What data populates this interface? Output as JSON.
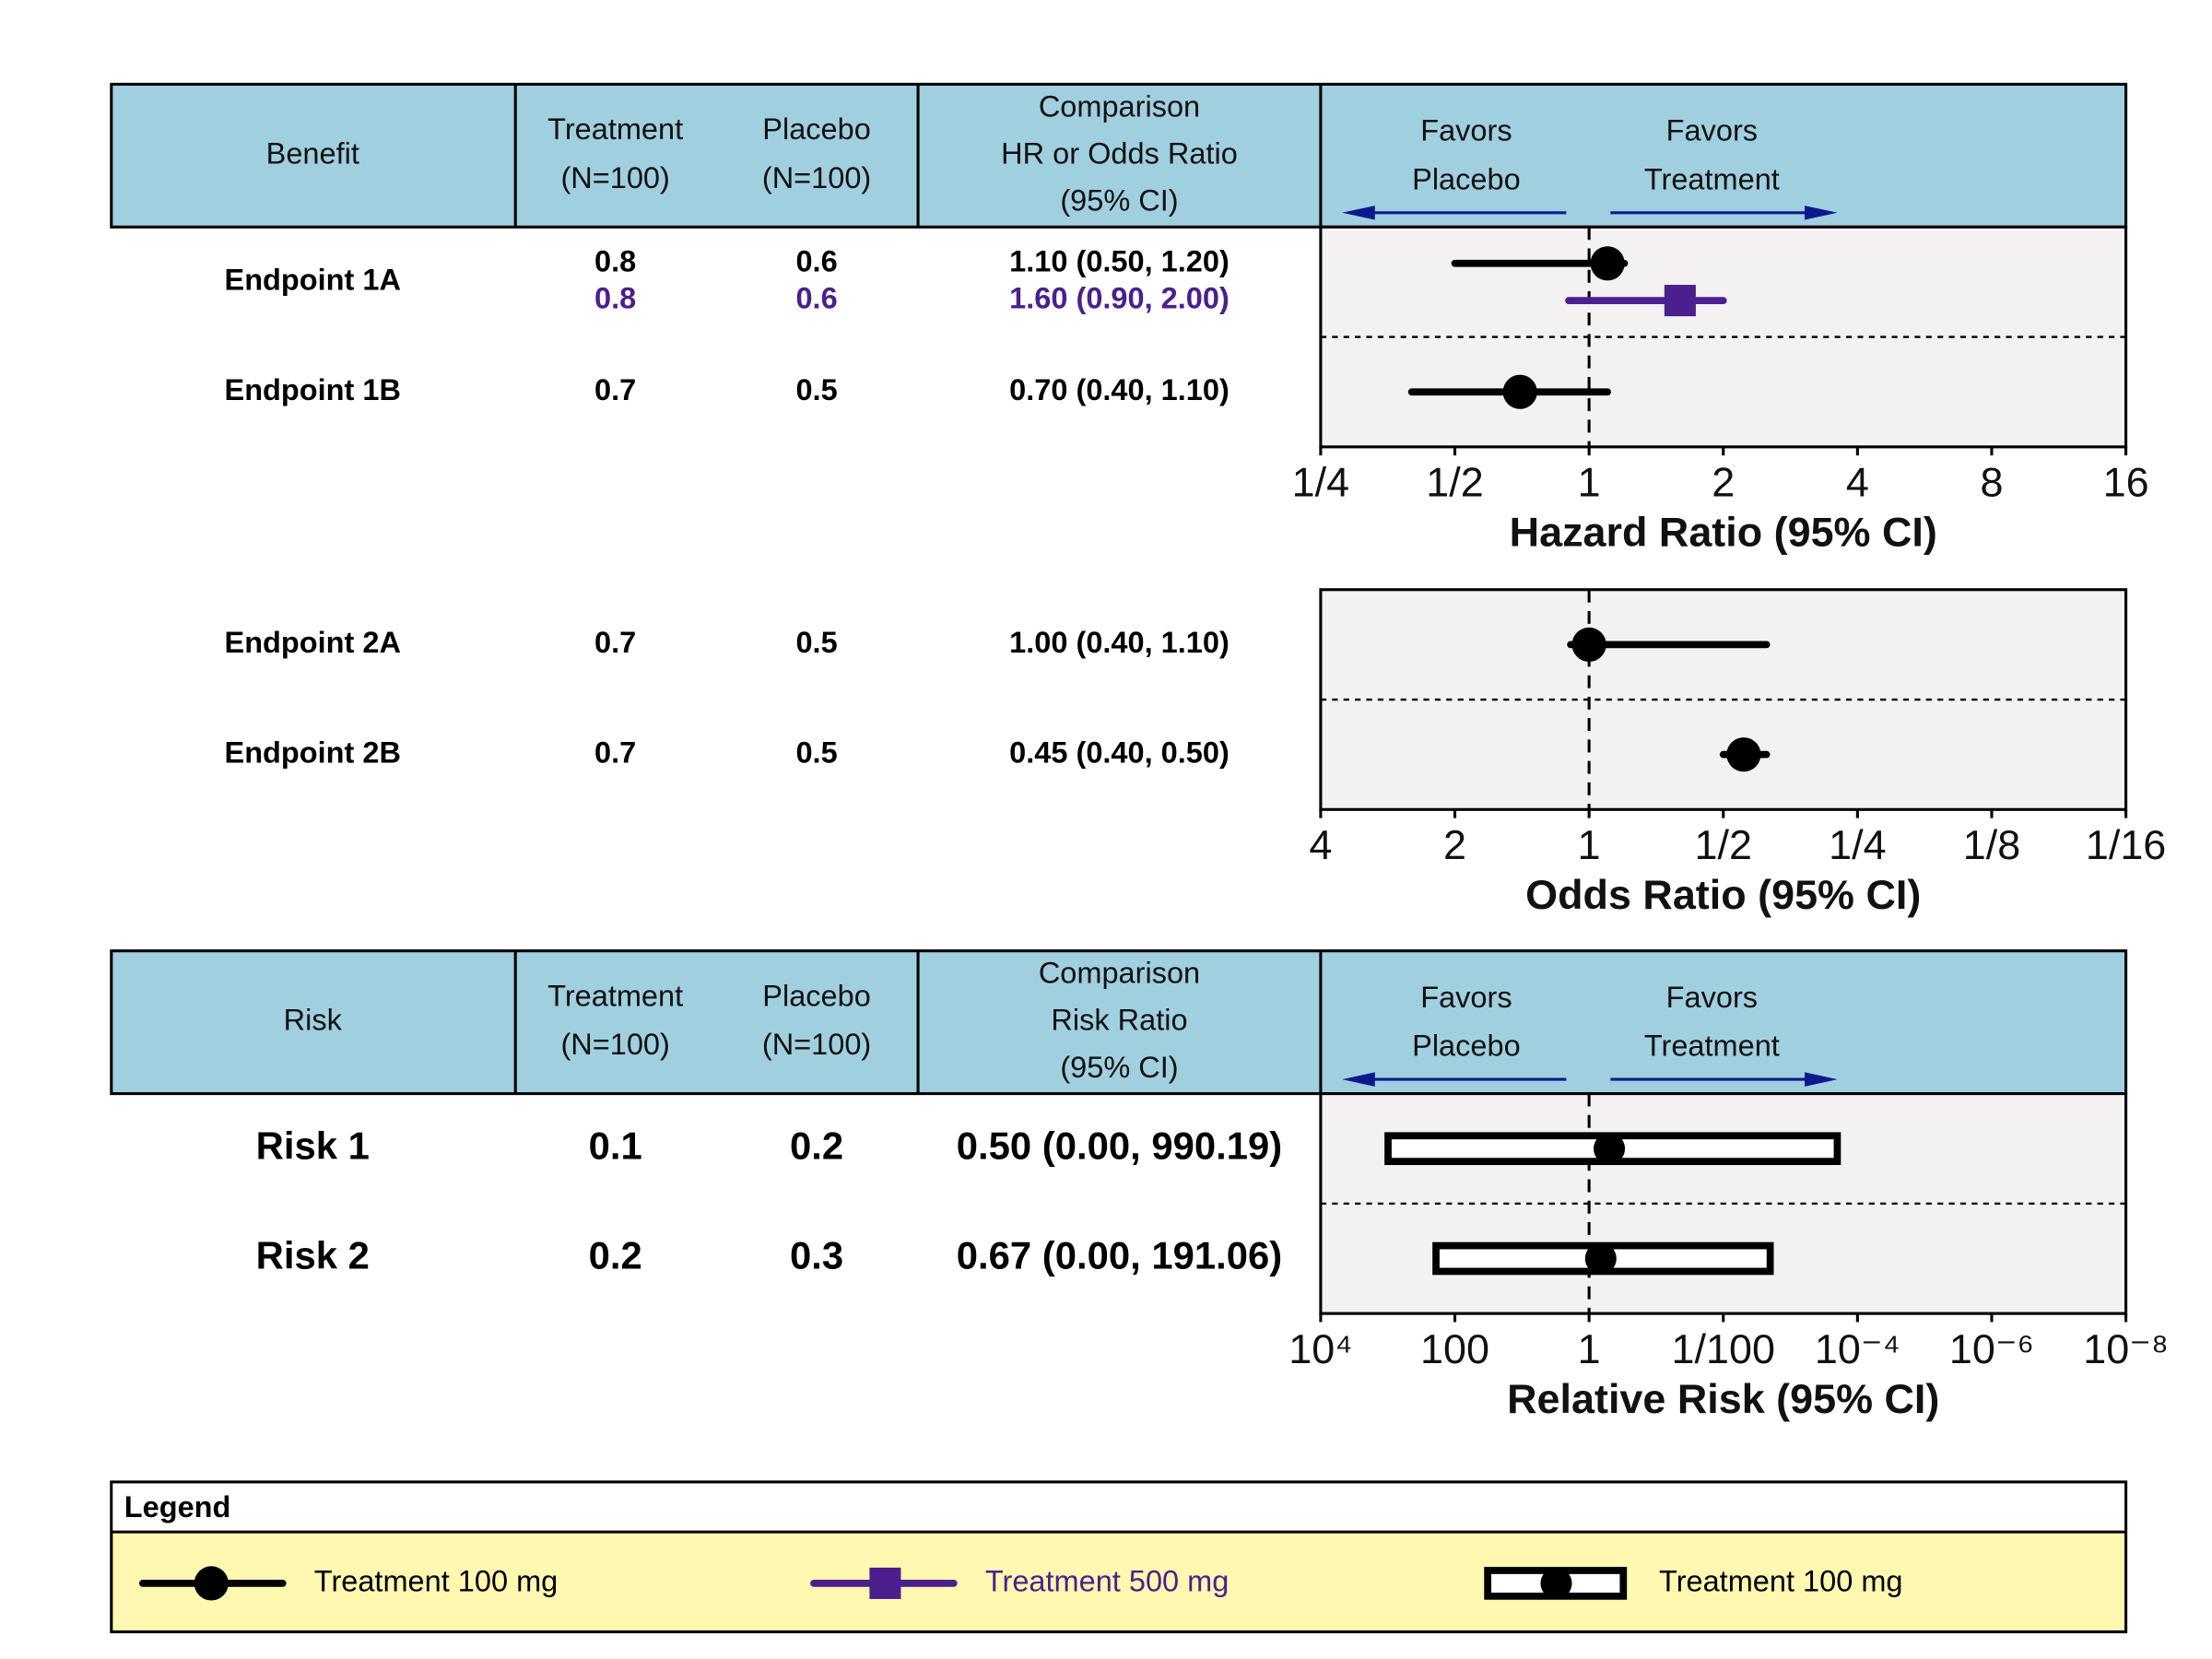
{
  "chart_data": [
    {
      "type": "forest",
      "header": {
        "columns": [
          [
            "Benefit"
          ],
          [
            "Treatment",
            "(N=100)"
          ],
          [
            "Placebo",
            "(N=100)"
          ],
          [
            "Comparison",
            "HR or Odds Ratio",
            "(95% CI)"
          ]
        ],
        "favors": [
          [
            "Favors",
            "Placebo"
          ],
          [
            "Favors",
            "Treatment"
          ]
        ]
      },
      "xlabel": "Hazard Ratio (95% CI)",
      "xscale": "log",
      "xlim": [
        0.25,
        16
      ],
      "xticks": [
        {
          "value": 0.25,
          "label": "1/4"
        },
        {
          "value": 0.5,
          "label": "1/2"
        },
        1,
        2,
        4,
        8,
        16
      ],
      "reference_line": 1,
      "rows": [
        {
          "label": "Endpoint 1A",
          "entries": [
            {
              "series": 0,
              "treatment": 0.8,
              "placebo": 0.6,
              "summary": "1.10 (0.50, 1.20)",
              "estimate": 1.1,
              "lower": 0.5,
              "upper": 1.2
            },
            {
              "series": 1,
              "treatment": 0.8,
              "placebo": 0.6,
              "summary": "1.60 (0.90, 2.00)",
              "estimate": 1.6,
              "lower": 0.9,
              "upper": 2.0
            }
          ]
        },
        {
          "label": "Endpoint 1B",
          "entries": [
            {
              "series": 0,
              "treatment": 0.7,
              "placebo": 0.5,
              "summary": "0.70 (0.40, 1.10)",
              "estimate": 0.7,
              "lower": 0.4,
              "upper": 1.1
            }
          ]
        }
      ]
    },
    {
      "type": "forest",
      "xlabel": "Odds Ratio (95% CI)",
      "xscale": "log",
      "xlim": [
        4,
        0.0625
      ],
      "xticks": [
        4,
        2,
        1,
        {
          "value": 0.5,
          "label": "1/2"
        },
        {
          "value": 0.25,
          "label": "1/4"
        },
        {
          "value": 0.125,
          "label": "1/8"
        },
        {
          "value": 0.0625,
          "label": "1/16"
        }
      ],
      "reference_line": 1,
      "rows": [
        {
          "label": "Endpoint 2A",
          "entries": [
            {
              "series": 0,
              "treatment": 0.7,
              "placebo": 0.5,
              "summary": "1.00 (0.40, 1.10)",
              "estimate": 1.0,
              "lower": 0.4,
              "upper": 1.1
            }
          ]
        },
        {
          "label": "Endpoint 2B",
          "entries": [
            {
              "series": 0,
              "treatment": 0.7,
              "placebo": 0.5,
              "summary": "0.45 (0.40, 0.50)",
              "estimate": 0.45,
              "lower": 0.4,
              "upper": 0.5
            }
          ]
        }
      ]
    },
    {
      "type": "forest",
      "header": {
        "columns": [
          [
            "Risk"
          ],
          [
            "Treatment",
            "(N=100)"
          ],
          [
            "Placebo",
            "(N=100)"
          ],
          [
            "Comparison",
            "Risk Ratio",
            "(95% CI)"
          ]
        ],
        "favors": [
          [
            "Favors",
            "Placebo"
          ],
          [
            "Favors",
            "Treatment"
          ]
        ]
      },
      "xlabel": "Relative Risk (95% CI)",
      "xscale": "log",
      "xlim": [
        10000,
        1e-08
      ],
      "xticks": [
        {
          "value": 10000,
          "label": "10⁴"
        },
        100,
        1,
        {
          "value": 0.01,
          "label": "1/100"
        },
        {
          "value": 0.0001,
          "label": "10⁻⁴"
        },
        {
          "value": 1e-06,
          "label": "10⁻⁶"
        },
        {
          "value": 1e-08,
          "label": "10⁻⁸"
        }
      ],
      "reference_line": 1,
      "rows": [
        {
          "label": "Risk 1",
          "entries": [
            {
              "series": 2,
              "treatment": 0.1,
              "placebo": 0.2,
              "summary": "0.50 (0.00, 990.19)",
              "estimate": 0.5,
              "lower": 0.0002,
              "upper": 990.19
            }
          ]
        },
        {
          "label": "Risk 2",
          "entries": [
            {
              "series": 2,
              "treatment": 0.2,
              "placebo": 0.3,
              "summary": "0.67 (0.00, 191.06)",
              "estimate": 0.67,
              "lower": 0.002,
              "upper": 191.06
            }
          ]
        }
      ]
    }
  ],
  "legend": {
    "title": "Legend",
    "entries": [
      {
        "name": "Treatment 100 mg",
        "color": "#000000",
        "marker": "circle"
      },
      {
        "name": "Treatment 500 mg",
        "color": "#4b1f8e",
        "marker": "square"
      },
      {
        "name": "Treatment 100 mg",
        "color": "#000000",
        "marker": "box"
      }
    ]
  }
}
